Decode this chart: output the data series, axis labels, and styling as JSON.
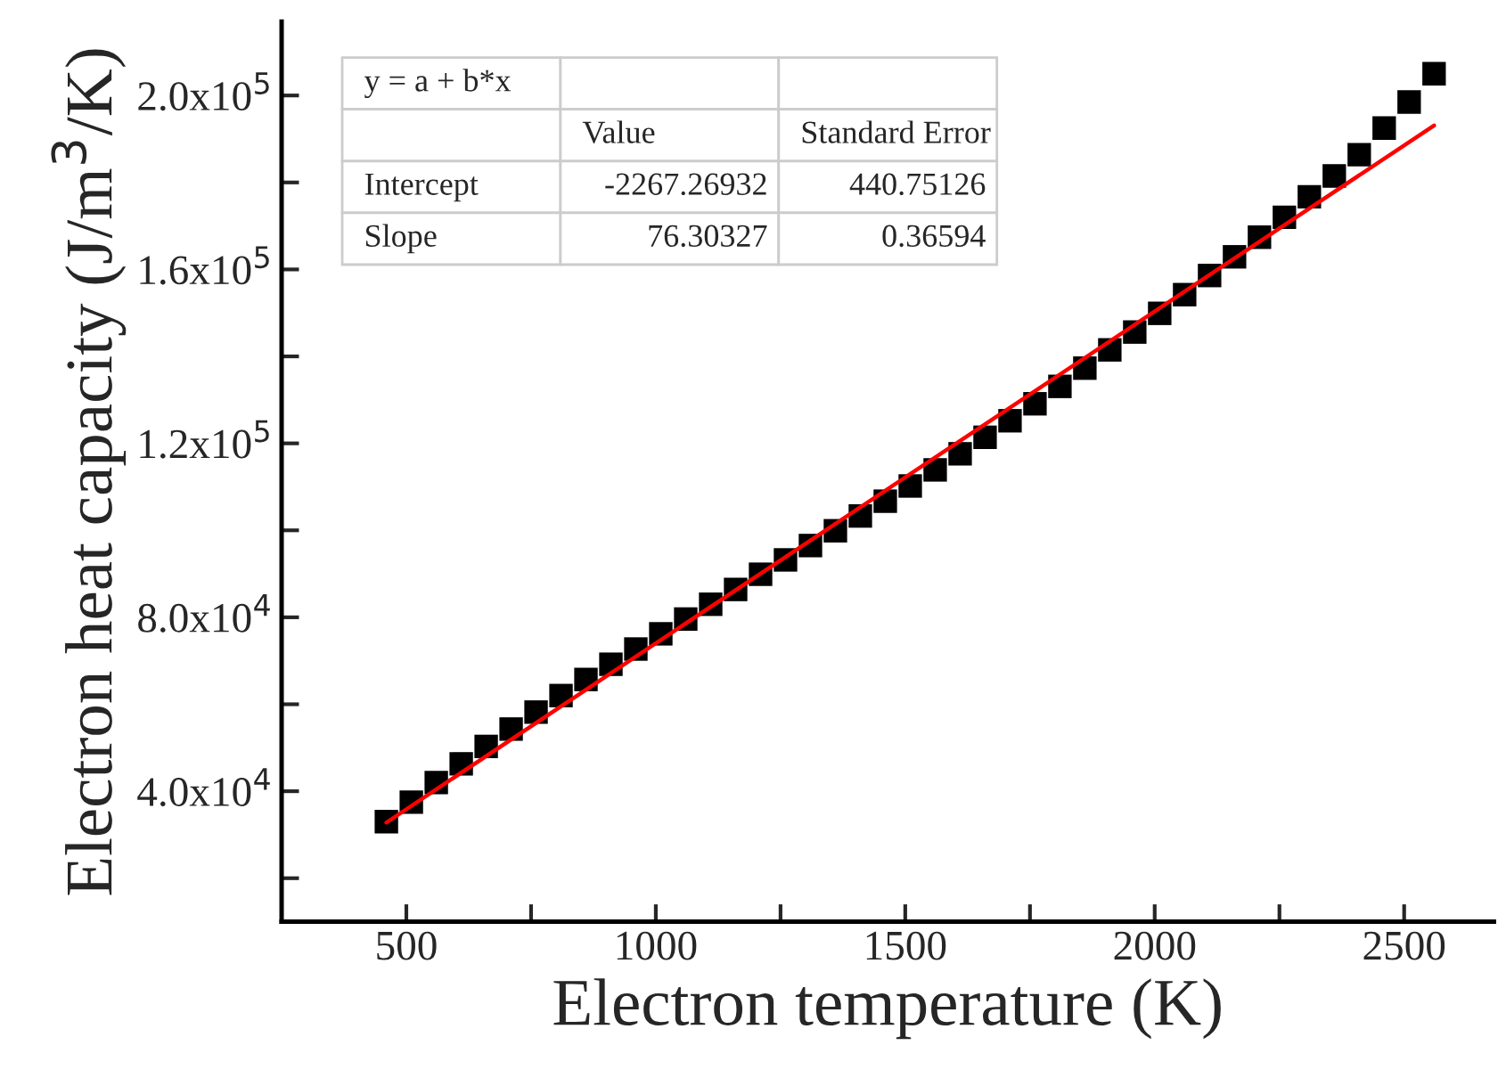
{
  "chart_data": {
    "type": "scatter",
    "xlabel": "Electron temperature (K)",
    "ylabel": "Electron heat capacity (J/m$^{3}$/K)",
    "series": [
      {
        "color": "#000000",
        "marker": "square",
        "x": [
          460,
          510,
          560,
          610,
          660,
          710,
          760,
          810,
          860,
          910,
          960,
          1010,
          1060,
          1110,
          1160,
          1210,
          1260,
          1310,
          1360,
          1410,
          1460,
          1510,
          1560,
          1610,
          1660,
          1710,
          1760,
          1810,
          1860,
          1910,
          1960,
          2010,
          2060,
          2110,
          2160,
          2210,
          2260,
          2310,
          2360,
          2410,
          2460,
          2510,
          2560
        ],
        "values": [
          33000,
          37500,
          42000,
          46300,
          50300,
          54300,
          58200,
          62000,
          65700,
          69200,
          72700,
          76200,
          79600,
          83000,
          86400,
          89900,
          93200,
          96500,
          99900,
          103300,
          106700,
          110200,
          113900,
          117600,
          121400,
          125200,
          129100,
          133100,
          137300,
          141500,
          145600,
          149900,
          154200,
          158600,
          162900,
          167400,
          172000,
          176700,
          181500,
          186400,
          192500,
          198500,
          205000
        ]
      },
      {
        "type": "line",
        "color": "#ff0000",
        "x": [
          460,
          2560
        ],
        "values": [
          32800,
          193100
        ]
      }
    ],
    "xlim": [
      250,
      2680
    ],
    "ylim": [
      10000,
      217000
    ],
    "xticks": [
      500,
      {
        "value": 750,
        "label": null
      },
      1000,
      {
        "value": 1250,
        "label": null
      },
      1500,
      {
        "value": 1750,
        "label": null
      },
      2000,
      {
        "value": 2250,
        "label": null
      },
      2500
    ],
    "yticks": [
      {
        "value": 20000,
        "label": null
      },
      {
        "value": 40000,
        "label": "4.0x10$^{4}$"
      },
      {
        "value": 60000,
        "label": null
      },
      {
        "value": 80000,
        "label": "8.0x10$^{4}$"
      },
      {
        "value": 100000,
        "label": null
      },
      {
        "value": 120000,
        "label": "1.2x10$^{5}$"
      },
      {
        "value": 140000,
        "label": null
      },
      {
        "value": 160000,
        "label": "1.6x10$^{5}$"
      },
      {
        "value": 180000,
        "label": null
      },
      {
        "value": 200000,
        "label": "2.0x10$^{5}$"
      }
    ],
    "grid": false,
    "legend": false,
    "annotations": [
      "y = a + b*x",
      "Value",
      "Standard Error",
      "Intercept",
      "-2267.26932",
      "440.75126",
      "Slope",
      "76.30327",
      "0.36594"
    ]
  }
}
